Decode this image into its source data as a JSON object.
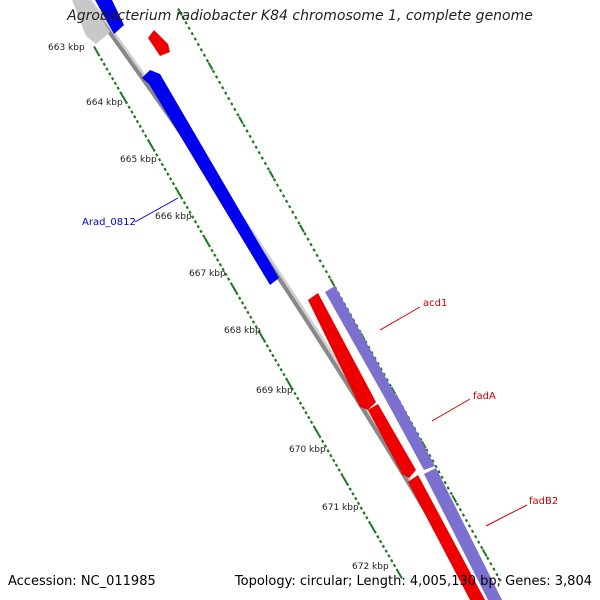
{
  "title": "Agrobacterium radiobacter K84 chromosome 1, complete genome",
  "accession_text": "Accession: NC_011985",
  "summary_text": "Topology: circular; Length: 4,005,130 bp; Genes: 3,804",
  "colors": {
    "backbone": "#888888",
    "tick": "#1a7a1a",
    "gene_forward": "#0000ee",
    "gene_reverse": "#ee0000",
    "gene_cds": "#7b6fd0",
    "gene_faded": "#c8c8c8",
    "label_blue": "#0000cc",
    "label_red": "#cc0000"
  },
  "kbp_ticks": [
    "663 kbp",
    "664 kbp",
    "665 kbp",
    "666 kbp",
    "667 kbp",
    "668 kbp",
    "669 kbp",
    "670 kbp",
    "671 kbp",
    "672 kbp"
  ],
  "gene_labels": {
    "arad": "Arad_0812",
    "acd1": "acd1",
    "fadA": "fadA",
    "fadB2": "fadB2"
  }
}
